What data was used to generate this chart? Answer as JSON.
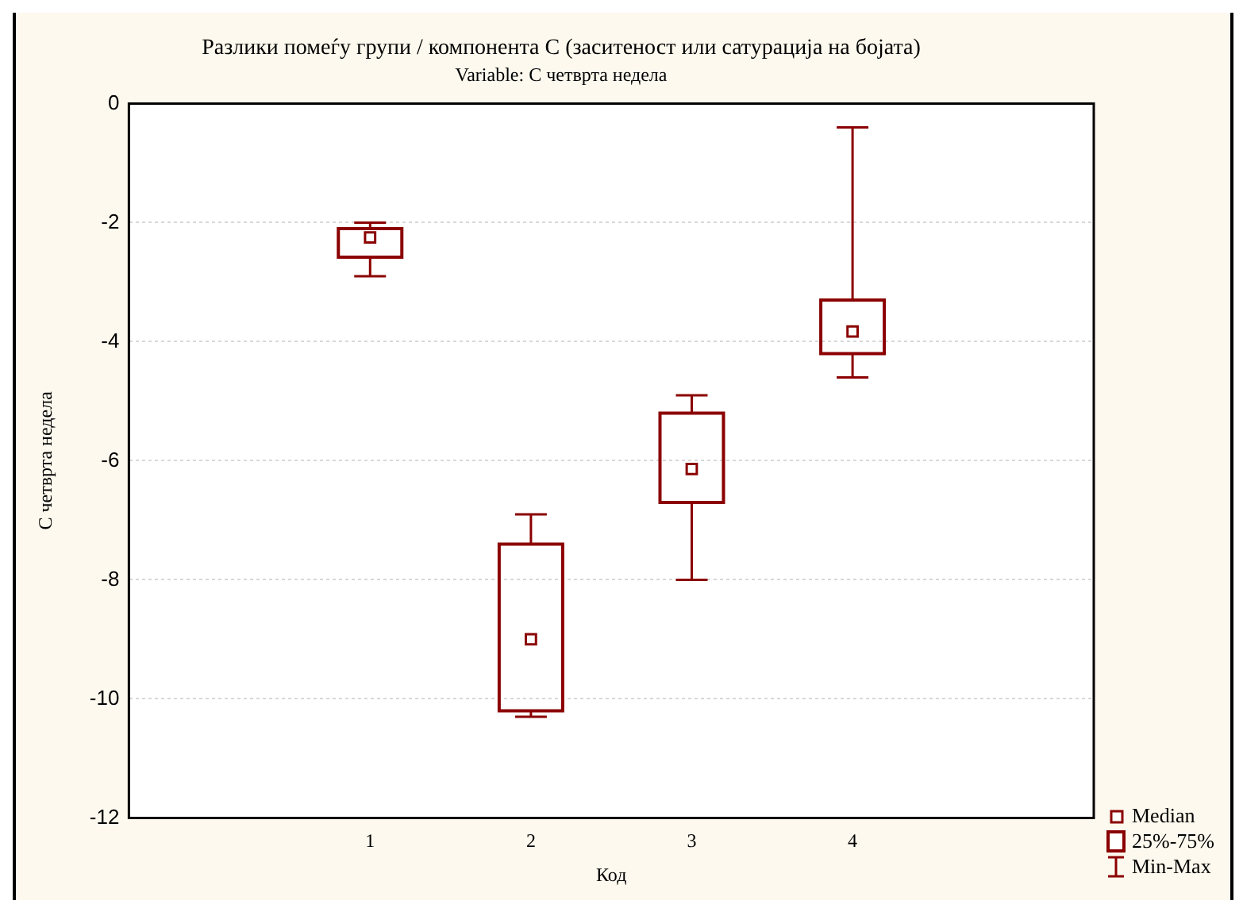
{
  "chart_data": {
    "type": "box",
    "title": "Разлики помеѓу групи / компонента С (заситеност или сатурација на бојата)",
    "subtitle": "Variable: С четврта недела",
    "xlabel": "Код",
    "ylabel": "С четврта недела",
    "categories": [
      "1",
      "2",
      "3",
      "4"
    ],
    "color": "#8b0000",
    "boxes": [
      {
        "low": -2.9,
        "q1": -2.58,
        "median": -2.25,
        "q3": -2.1,
        "high": -2.0
      },
      {
        "low": -10.3,
        "q1": -10.2,
        "median": -9.0,
        "q3": -7.4,
        "high": -6.9
      },
      {
        "low": -8.0,
        "q1": -6.7,
        "median": -6.14,
        "q3": -5.2,
        "high": -4.9
      },
      {
        "low": -4.6,
        "q1": -4.2,
        "median": -3.83,
        "q3": -3.3,
        "high": -0.4
      }
    ],
    "ylim": [
      -12,
      0
    ],
    "yticks": [
      -12,
      -10,
      -8,
      -6,
      -4,
      -2,
      0
    ],
    "grid": "y",
    "annotations": [
      "Median",
      "25%-75%",
      "Min-Max"
    ]
  }
}
